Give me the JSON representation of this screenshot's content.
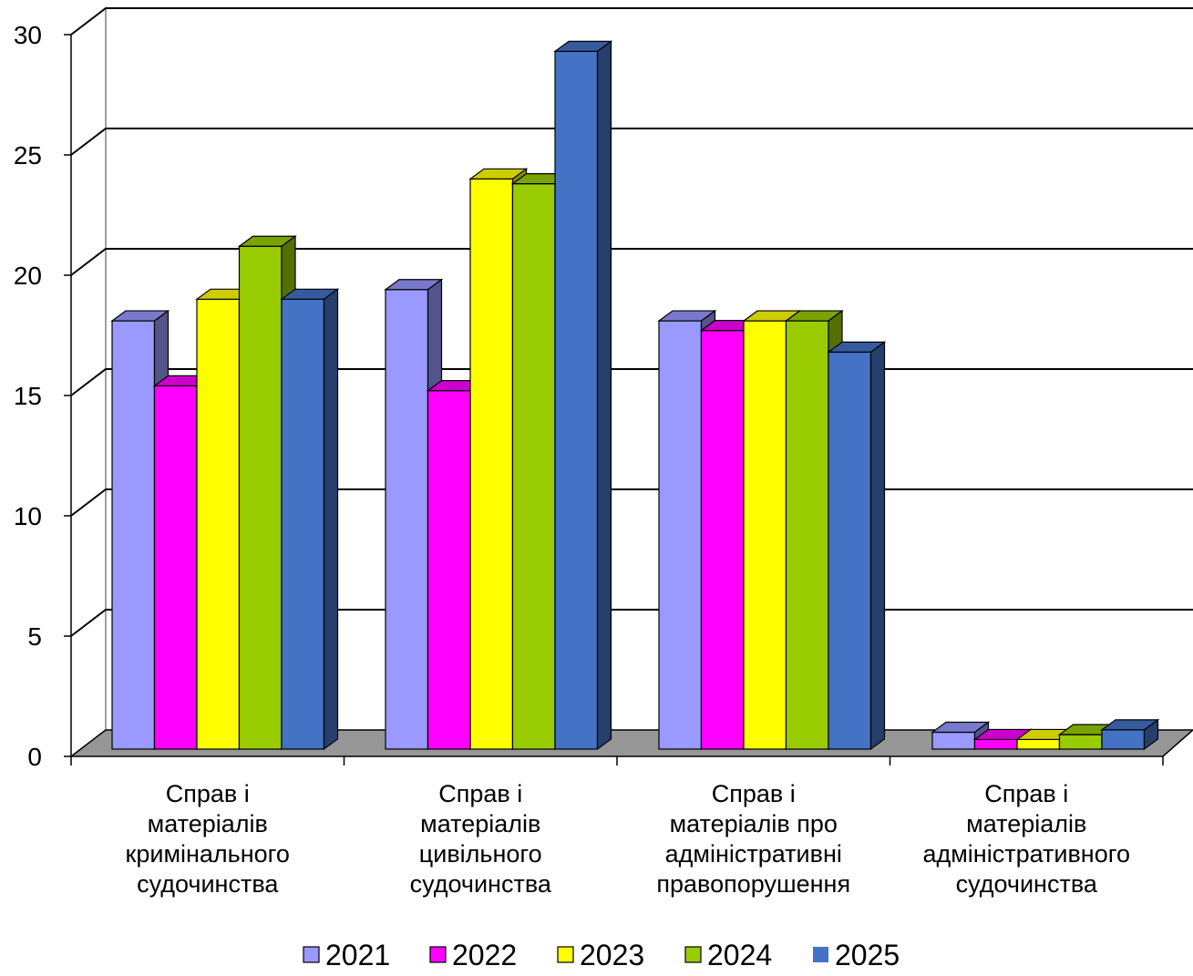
{
  "chart_data": {
    "type": "bar",
    "variant": "3d-clustered",
    "title": "",
    "xlabel": "",
    "ylabel": "",
    "ylim": [
      0,
      30
    ],
    "yticks": [
      0,
      5,
      10,
      15,
      20,
      25,
      30
    ],
    "grid": true,
    "legend_position": "bottom",
    "categories": [
      [
        "Справ і",
        "матеріалів",
        "кримінального",
        "судочинства"
      ],
      [
        "Справ і",
        "матеріалів",
        "цивільного",
        "судочинства"
      ],
      [
        "Справ і",
        "матеріалів про",
        "адміністративні",
        "правопорушення"
      ],
      [
        "Справ і",
        "матеріалів",
        "адміністративного",
        "судочинства"
      ]
    ],
    "series": [
      {
        "name": "2021",
        "color": "#9999ff",
        "values": [
          17.8,
          19.1,
          17.8,
          0.7
        ]
      },
      {
        "name": "2022",
        "color": "#ff00ff",
        "values": [
          15.1,
          14.9,
          17.4,
          0.4
        ]
      },
      {
        "name": "2023",
        "color": "#ffff00",
        "values": [
          18.7,
          23.7,
          17.8,
          0.4
        ]
      },
      {
        "name": "2024",
        "color": "#99cc00",
        "values": [
          20.9,
          23.5,
          17.8,
          0.6
        ]
      },
      {
        "name": "2025",
        "color": "#4472c4",
        "values": [
          18.7,
          29.0,
          16.5,
          0.8
        ]
      }
    ]
  }
}
